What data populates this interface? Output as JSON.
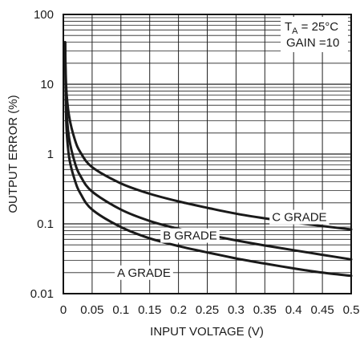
{
  "chart_data": {
    "type": "line",
    "xlabel": "INPUT VOLTAGE (V)",
    "ylabel": "OUTPUT ERROR (%)",
    "xlim": [
      0,
      0.5
    ],
    "ylim": [
      0.01,
      100
    ],
    "yscale": "log",
    "grid": true,
    "x_ticks": [
      "0",
      "0.05",
      "0.1",
      "0.15",
      "0.2",
      "0.25",
      "0.3",
      "0.35",
      "0.4",
      "0.45",
      "0.5"
    ],
    "y_ticks": [
      "0.01",
      "0.1",
      "1",
      "10",
      "100"
    ],
    "annotations": {
      "condition_1": {
        "prefix": "T",
        "sub": "A",
        "suffix": " = 25°C"
      },
      "condition_2": "GAIN =10"
    },
    "series": [
      {
        "name": "C GRADE",
        "x": [
          0.003,
          0.005,
          0.01,
          0.02,
          0.03,
          0.05,
          0.1,
          0.15,
          0.2,
          0.25,
          0.3,
          0.35,
          0.4,
          0.45,
          0.5
        ],
        "y": [
          40,
          9,
          3.5,
          1.6,
          1.05,
          0.65,
          0.38,
          0.27,
          0.21,
          0.17,
          0.14,
          0.12,
          0.105,
          0.093,
          0.083
        ]
      },
      {
        "name": "B GRADE",
        "x": [
          0.003,
          0.005,
          0.01,
          0.02,
          0.03,
          0.05,
          0.1,
          0.15,
          0.2,
          0.25,
          0.3,
          0.35,
          0.4,
          0.45,
          0.5
        ],
        "y": [
          40,
          5,
          1.7,
          0.75,
          0.48,
          0.29,
          0.16,
          0.11,
          0.085,
          0.07,
          0.058,
          0.049,
          0.042,
          0.036,
          0.031
        ]
      },
      {
        "name": "A GRADE",
        "x": [
          0.003,
          0.005,
          0.01,
          0.02,
          0.03,
          0.05,
          0.1,
          0.15,
          0.2,
          0.25,
          0.3,
          0.35,
          0.4,
          0.45,
          0.5
        ],
        "y": [
          40,
          3,
          0.9,
          0.42,
          0.27,
          0.16,
          0.09,
          0.062,
          0.048,
          0.039,
          0.032,
          0.027,
          0.023,
          0.02,
          0.018
        ]
      }
    ],
    "series_labels": [
      {
        "name": "C GRADE",
        "at_x": 0.41,
        "at_y": 0.125
      },
      {
        "name": "B GRADE",
        "at_x": 0.22,
        "at_y": 0.068
      },
      {
        "name": "A GRADE",
        "at_x": 0.14,
        "at_y": 0.02
      }
    ]
  }
}
